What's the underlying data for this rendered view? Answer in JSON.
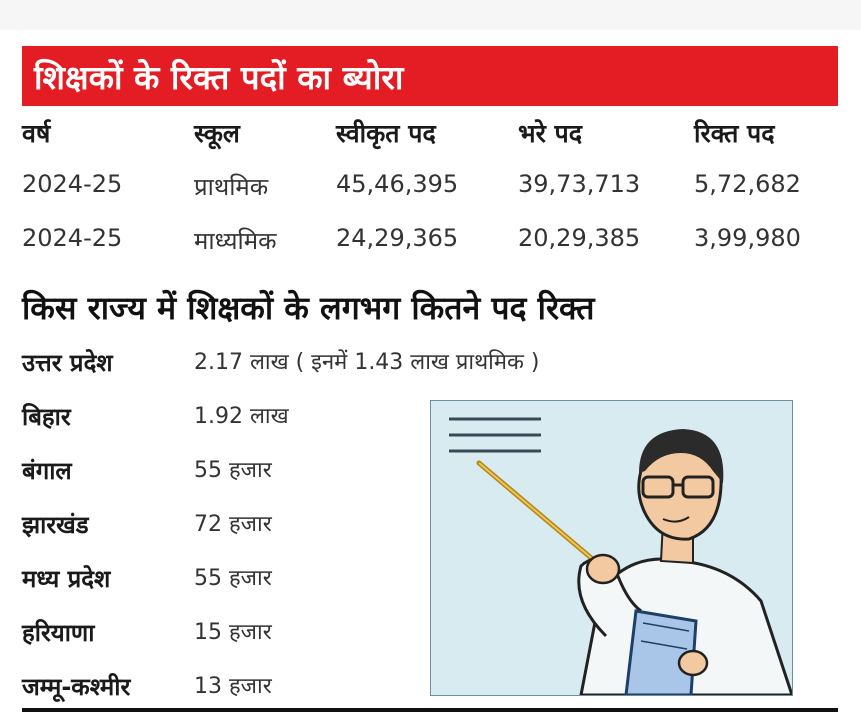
{
  "vacancy_table": {
    "title": "शिक्षकों के रिक्त पदों का ब्योरा",
    "headers": [
      "वर्ष",
      "स्कूल",
      "स्वीकृत पद",
      "भरे पद",
      "रिक्त पद"
    ],
    "rows": [
      [
        "2024-25",
        "प्राथमिक",
        "45,46,395",
        "39,73,713",
        "5,72,682"
      ],
      [
        "2024-25",
        "माध्यमिक",
        "24,29,365",
        "20,29,385",
        "3,99,980"
      ]
    ]
  },
  "state_section": {
    "title": "किस राज्य में शिक्षकों के लगभग कितने पद रिक्त",
    "states": [
      {
        "name": "उत्तर प्रदेश",
        "value": "2.17 लाख ( इनमें 1.43 लाख प्राथमिक )"
      },
      {
        "name": "बिहार",
        "value": "1.92 लाख"
      },
      {
        "name": "बंगाल",
        "value": "55 हजार"
      },
      {
        "name": "झारखंड",
        "value": "72 हजार"
      },
      {
        "name": "मध्य प्रदेश",
        "value": "55 हजार"
      },
      {
        "name": "हरियाणा",
        "value": "15 हजार"
      },
      {
        "name": "जम्मू-कश्मीर",
        "value": "13 हजार"
      }
    ]
  },
  "colors": {
    "banner": "#e41d24",
    "illustration_bg": "#d7ebf1"
  }
}
